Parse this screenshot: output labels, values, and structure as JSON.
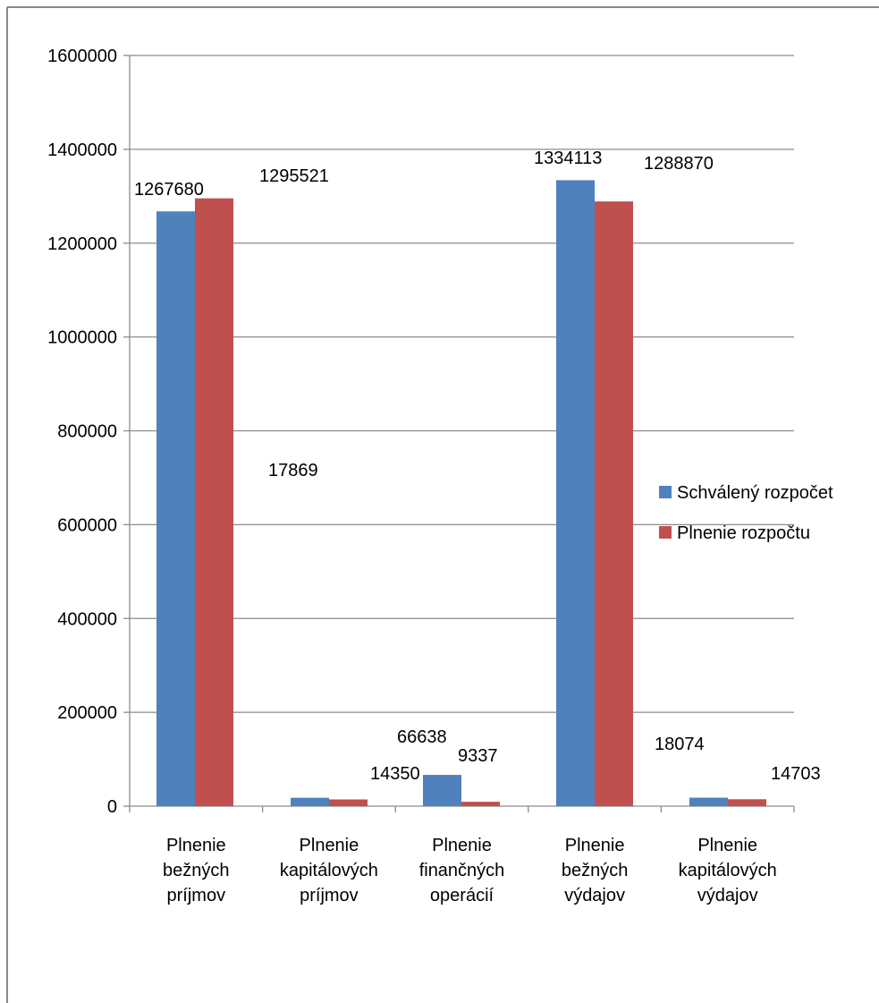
{
  "chart_data": {
    "type": "bar",
    "title": "",
    "xlabel": "",
    "ylabel": "",
    "ylim": [
      0,
      1600000
    ],
    "yticks": [
      0,
      200000,
      400000,
      600000,
      800000,
      1000000,
      1200000,
      1400000,
      1600000
    ],
    "ytick_labels": [
      "0",
      "200000",
      "400000",
      "600000",
      "800000",
      "1000000",
      "1200000",
      "1400000",
      "1600000"
    ],
    "grid": true,
    "legend_position": "right",
    "categories": [
      [
        "Plnenie",
        "bežných",
        "príjmov"
      ],
      [
        "Plnenie",
        "kapitálových",
        "príjmov"
      ],
      [
        "Plnenie",
        "finančných",
        "operácií"
      ],
      [
        "Plnenie",
        "bežných",
        "výdajov"
      ],
      [
        "Plnenie",
        "kapitálových",
        "výdajov"
      ]
    ],
    "series": [
      {
        "name": "Schválený rozpočet",
        "color": "#4F81BD",
        "values": [
          1267680,
          17869,
          66638,
          1334113,
          18074
        ],
        "labels": [
          "1267680",
          "17869",
          "66638",
          "1334113",
          "18074"
        ]
      },
      {
        "name": "Plnenie rozpočtu",
        "color": "#C0504D",
        "values": [
          1295521,
          14350,
          9337,
          1288870,
          14703
        ],
        "labels": [
          "1295521",
          "14350",
          "9337",
          "1288870",
          "14703"
        ]
      }
    ]
  }
}
